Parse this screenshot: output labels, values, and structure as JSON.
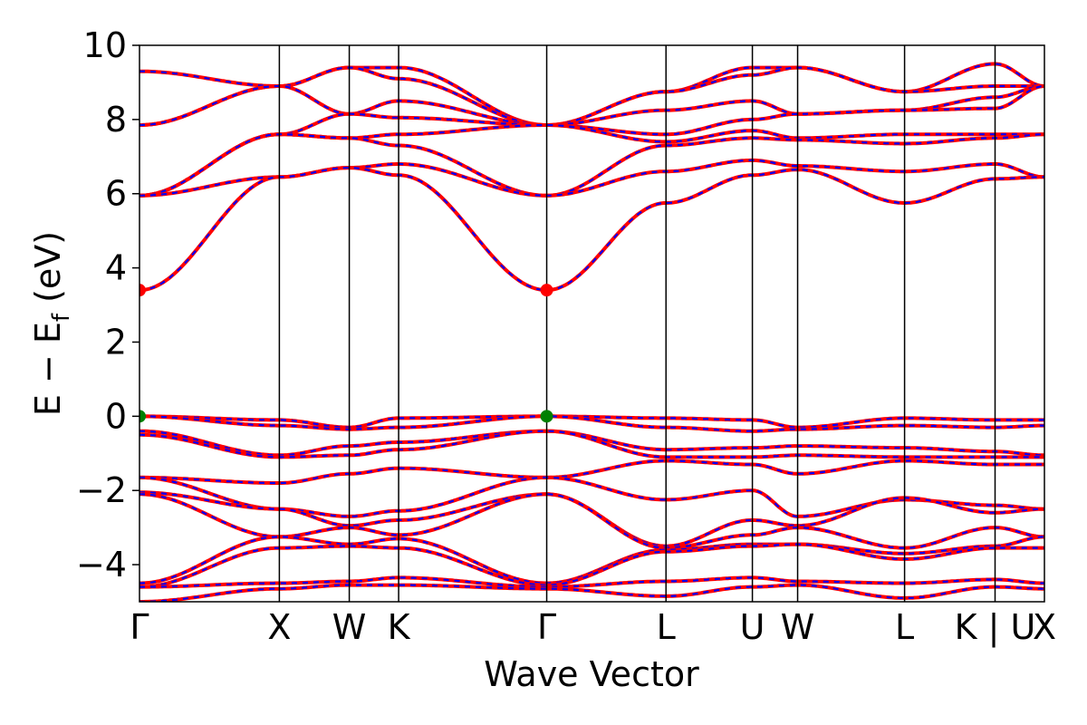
{
  "chart_data": {
    "type": "line",
    "title": "",
    "xlabel": "Wave Vector",
    "ylabel": "E − E",
    "ylabel_sub": "f",
    "ylabel_unit": "(eV)",
    "ylim": [
      -5,
      10
    ],
    "y_ticks": [
      {
        "value": 10,
        "label": "10"
      },
      {
        "value": 8,
        "label": "8"
      },
      {
        "value": 6,
        "label": "6"
      },
      {
        "value": 4,
        "label": "4"
      },
      {
        "value": 2,
        "label": "2"
      },
      {
        "value": 0,
        "label": "0"
      },
      {
        "value": -2,
        "label": "−2"
      },
      {
        "value": -4,
        "label": "−4"
      }
    ],
    "xlim": [
      0,
      11
    ],
    "high_symmetry_points": [
      {
        "label": "Γ",
        "x": 0
      },
      {
        "label": "X",
        "x": 1.7
      },
      {
        "label": "W",
        "x": 2.55
      },
      {
        "label": "K",
        "x": 3.15
      },
      {
        "label": "Γ",
        "x": 4.95
      },
      {
        "label": "L",
        "x": 6.4
      },
      {
        "label": "U",
        "x": 7.45
      },
      {
        "label": "W",
        "x": 8.0
      },
      {
        "label": "L",
        "x": 9.3
      },
      {
        "label": "K | U",
        "x": 10.4
      },
      {
        "label": "X",
        "x": 11.0
      }
    ],
    "series": [
      {
        "color": "#ff0000",
        "style": "solid"
      },
      {
        "color": "#0000ff",
        "style": "dashed"
      }
    ],
    "markers": [
      {
        "x": 0,
        "y": 3.4,
        "color": "#ff0000"
      },
      {
        "x": 4.95,
        "y": 3.4,
        "color": "#ff0000"
      },
      {
        "x": 0,
        "y": 0.0,
        "color": "#008000"
      },
      {
        "x": 4.95,
        "y": 0.0,
        "color": "#008000"
      }
    ],
    "grid": false,
    "legend": "none"
  }
}
